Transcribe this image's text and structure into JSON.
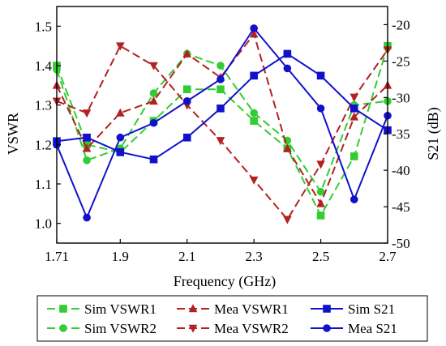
{
  "chart_data": {
    "type": "line",
    "xlabel": "Frequency (GHz)",
    "ylabel_left": "VSWR",
    "ylabel_right": "S21 (dB)",
    "xlim": [
      1.71,
      2.7
    ],
    "ylim_left": [
      0.95,
      1.55
    ],
    "ylim_right": [
      -50,
      -17.5
    ],
    "x_ticks": [
      1.71,
      1.9,
      2.1,
      2.3,
      2.5,
      2.7
    ],
    "x_tick_labels": [
      "1.71",
      "1.9",
      "2.1",
      "2.3",
      "2.5",
      "2.7"
    ],
    "y_left_ticks": [
      1.0,
      1.1,
      1.2,
      1.3,
      1.4,
      1.5
    ],
    "y_left_tick_labels": [
      "1.0",
      "1.1",
      "1.2",
      "1.3",
      "1.4",
      "1.5"
    ],
    "y_right_ticks": [
      -50,
      -45,
      -40,
      -35,
      -30,
      -25,
      -20
    ],
    "y_right_tick_labels": [
      "-50",
      "-45",
      "-40",
      "-35",
      "-30",
      "-25",
      "-20"
    ],
    "legend_position": "bottom",
    "x": [
      1.71,
      1.8,
      1.9,
      2.0,
      2.1,
      2.2,
      2.3,
      2.4,
      2.5,
      2.6,
      2.7
    ],
    "series": [
      {
        "name": "Sim VSWR1",
        "axis": "left",
        "color": "#33cc33",
        "dash": "dashed",
        "marker": "square",
        "values": [
          1.4,
          1.2,
          1.18,
          1.26,
          1.34,
          1.34,
          1.26,
          1.19,
          1.02,
          1.17,
          1.45
        ]
      },
      {
        "name": "Sim VSWR2",
        "axis": "left",
        "color": "#33cc33",
        "dash": "dashed",
        "marker": "circle",
        "values": [
          1.39,
          1.16,
          1.19,
          1.33,
          1.43,
          1.4,
          1.28,
          1.21,
          1.08,
          1.3,
          1.31
        ]
      },
      {
        "name": "Mea VSWR1",
        "axis": "left",
        "color": "#b22222",
        "dash": "dashed",
        "marker": "triangle-up",
        "values": [
          1.35,
          1.19,
          1.28,
          1.31,
          1.43,
          1.37,
          1.48,
          1.19,
          1.05,
          1.27,
          1.35
        ]
      },
      {
        "name": "Mea VSWR2",
        "axis": "left",
        "color": "#b22222",
        "dash": "dashed",
        "marker": "triangle-down",
        "values": [
          1.31,
          1.28,
          1.45,
          1.4,
          1.3,
          1.21,
          1.11,
          1.01,
          1.15,
          1.32,
          1.44
        ]
      },
      {
        "name": "Sim S21",
        "axis": "right",
        "color": "#1111cc",
        "dash": "solid",
        "marker": "square",
        "values": [
          -36.0,
          -35.5,
          -37.5,
          -38.5,
          -35.5,
          -31.5,
          -27.0,
          -24.0,
          -27.0,
          -31.5,
          -34.5
        ]
      },
      {
        "name": "Mea S21",
        "axis": "right",
        "color": "#1111cc",
        "dash": "solid",
        "marker": "circle",
        "values": [
          -36.5,
          -46.5,
          -35.5,
          -33.5,
          -30.5,
          -27.5,
          -20.5,
          -26.0,
          -31.5,
          -44.0,
          -32.5
        ]
      }
    ]
  }
}
